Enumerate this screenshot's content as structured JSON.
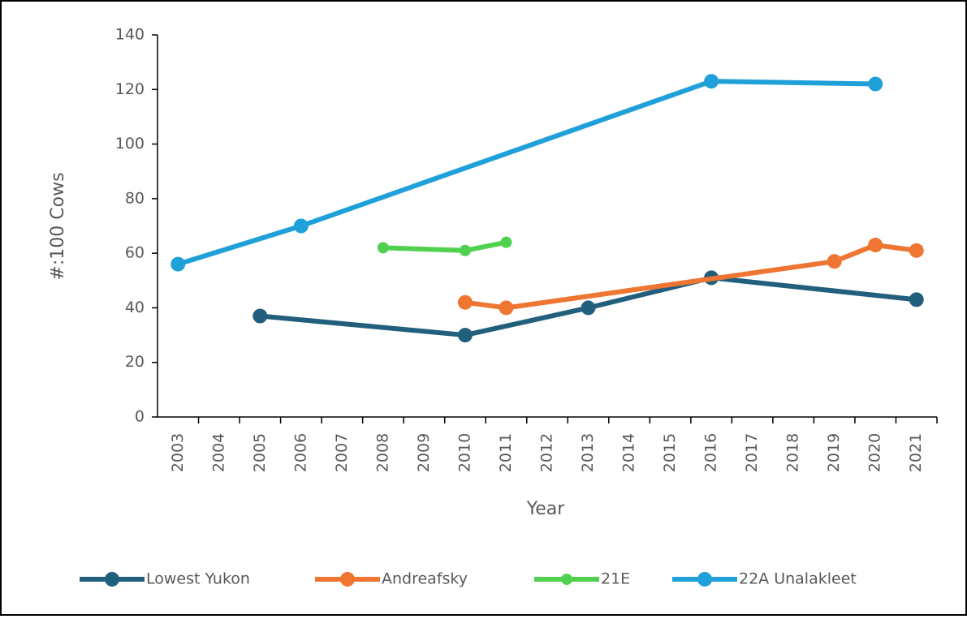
{
  "chart_data": {
    "type": "line",
    "xlabel": "Year",
    "ylabel": "#:100 Cows",
    "xlim": [
      2002.5,
      2021.5
    ],
    "xticks": [
      2003,
      2004,
      2005,
      2006,
      2007,
      2008,
      2009,
      2010,
      2011,
      2012,
      2013,
      2014,
      2015,
      2016,
      2017,
      2018,
      2019,
      2020,
      2021
    ],
    "ylim": [
      0,
      140
    ],
    "yticks": [
      0,
      20,
      40,
      60,
      80,
      100,
      120,
      140
    ],
    "legend": "bottom",
    "series": [
      {
        "name": "Lowest Yukon",
        "color": "#215f7c",
        "x": [
          2005,
          2010,
          2013,
          2016,
          2021
        ],
        "values": [
          37,
          30,
          40,
          51,
          43
        ]
      },
      {
        "name": "Andreafsky",
        "color": "#ee7532",
        "x": [
          2010,
          2011,
          2019,
          2020,
          2021
        ],
        "values": [
          42,
          40,
          57,
          63,
          61
        ]
      },
      {
        "name": "21E",
        "color": "#4fd14f",
        "x": [
          2008,
          2010,
          2011
        ],
        "values": [
          62,
          61,
          64
        ]
      },
      {
        "name": "22A Unalakleet",
        "color": "#1fa0d8",
        "x": [
          2003,
          2006,
          2016,
          2020
        ],
        "values": [
          56,
          70,
          123,
          122
        ]
      }
    ]
  }
}
